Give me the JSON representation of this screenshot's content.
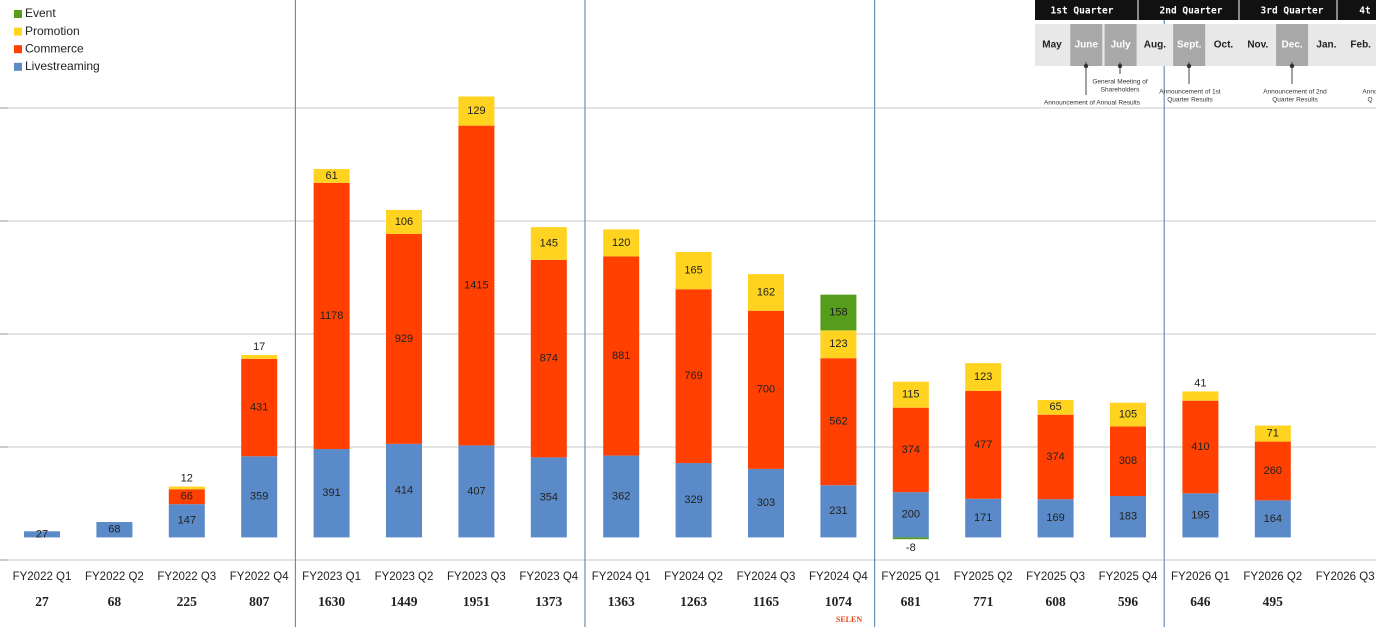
{
  "chart_data": {
    "type": "stacked_bar",
    "categories": [
      "FY2022 Q1",
      "FY2022 Q2",
      "FY2022 Q3",
      "FY2022 Q4",
      "FY2023 Q1",
      "FY2023 Q2",
      "FY2023 Q3",
      "FY2023 Q4",
      "FY2024 Q1",
      "FY2024 Q2",
      "FY2024 Q3",
      "FY2024 Q4",
      "FY2025 Q1",
      "FY2025 Q2",
      "FY2025 Q3",
      "FY2025 Q4",
      "FY2026 Q1",
      "FY2026 Q2",
      "FY2026 Q3"
    ],
    "series": [
      {
        "name": "Livestreaming",
        "color": "#5b8ac8",
        "values": [
          27,
          68,
          147,
          359,
          391,
          414,
          407,
          354,
          362,
          329,
          303,
          231,
          200,
          171,
          169,
          183,
          195,
          164,
          null
        ]
      },
      {
        "name": "Commerce",
        "color": "#ff4000",
        "values": [
          null,
          null,
          66,
          431,
          1178,
          929,
          1415,
          874,
          881,
          769,
          700,
          562,
          374,
          477,
          374,
          308,
          410,
          260,
          null
        ]
      },
      {
        "name": "Promotion",
        "color": "#ffd320",
        "values": [
          null,
          null,
          12,
          17,
          61,
          106,
          129,
          145,
          120,
          165,
          162,
          123,
          115,
          123,
          65,
          105,
          41,
          71,
          null
        ]
      },
      {
        "name": "Event",
        "color": "#579d1c",
        "values": [
          null,
          null,
          null,
          null,
          null,
          null,
          null,
          null,
          null,
          null,
          null,
          158,
          -8,
          null,
          null,
          null,
          null,
          null,
          null
        ]
      }
    ],
    "totals": [
      27,
      68,
      225,
      807,
      1630,
      1449,
      1951,
      1373,
      1363,
      1263,
      1165,
      1074,
      681,
      771,
      608,
      596,
      646,
      495,
      null
    ],
    "ylim": [
      -100,
      2400
    ],
    "yticks": [
      -100,
      400,
      900,
      1400,
      1900
    ],
    "grid": true,
    "tick_labels": false,
    "legend_position": "upper left",
    "footnote": "SELEN"
  },
  "timeline": {
    "quarters": [
      "1st Quarter",
      "2nd Quarter",
      "3rd Quarter",
      "4t"
    ],
    "months": [
      "May",
      "June",
      "July",
      "Aug.",
      "Sept.",
      "Oct.",
      "Nov.",
      "Dec.",
      "Jan.",
      "Feb."
    ],
    "annotations": [
      {
        "lines": [
          "General Meeting of",
          "Shareholders"
        ]
      },
      {
        "lines": [
          "Announcement of Annual Results"
        ]
      },
      {
        "lines": [
          "Announcement of 1st",
          "Quarter Results"
        ]
      },
      {
        "lines": [
          "Announcement of 2nd",
          "Quarter Results"
        ]
      },
      {
        "lines": [
          "Anno",
          "Q"
        ]
      }
    ]
  }
}
